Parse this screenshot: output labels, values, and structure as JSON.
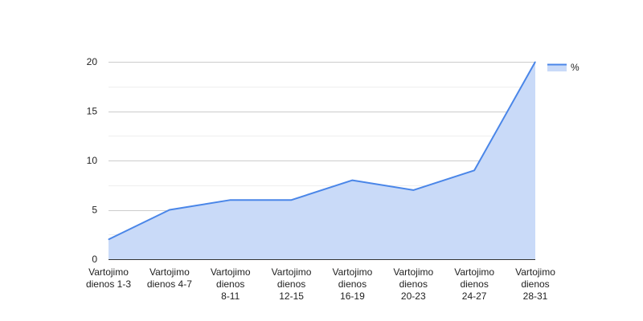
{
  "chart_data": {
    "type": "area",
    "categories": [
      [
        "Vartojimo",
        "dienos 1-3"
      ],
      [
        "Vartojimo",
        "dienos 4-7"
      ],
      [
        "Vartojimo",
        "dienos",
        "8-11"
      ],
      [
        "Vartojimo",
        "dienos",
        "12-15"
      ],
      [
        "Vartojimo",
        "dienos",
        "16-19"
      ],
      [
        "Vartojimo",
        "dienos",
        "20-23"
      ],
      [
        "Vartojimo",
        "dienos",
        "24-27"
      ],
      [
        "Vartojimo",
        "dienos",
        "28-31"
      ]
    ],
    "series": [
      {
        "name": "%",
        "values": [
          2,
          5,
          6,
          6,
          8,
          7,
          9,
          20
        ]
      }
    ],
    "ylim": [
      0,
      20
    ],
    "yticks": [
      0,
      5,
      10,
      15,
      20
    ],
    "grid": true,
    "legend_position": "right",
    "colors": {
      "line": "#4a86e8",
      "fill": "#c9daf8",
      "grid": "#cccccc",
      "minor_grid": "#eeeeee",
      "baseline": "#333333"
    }
  }
}
